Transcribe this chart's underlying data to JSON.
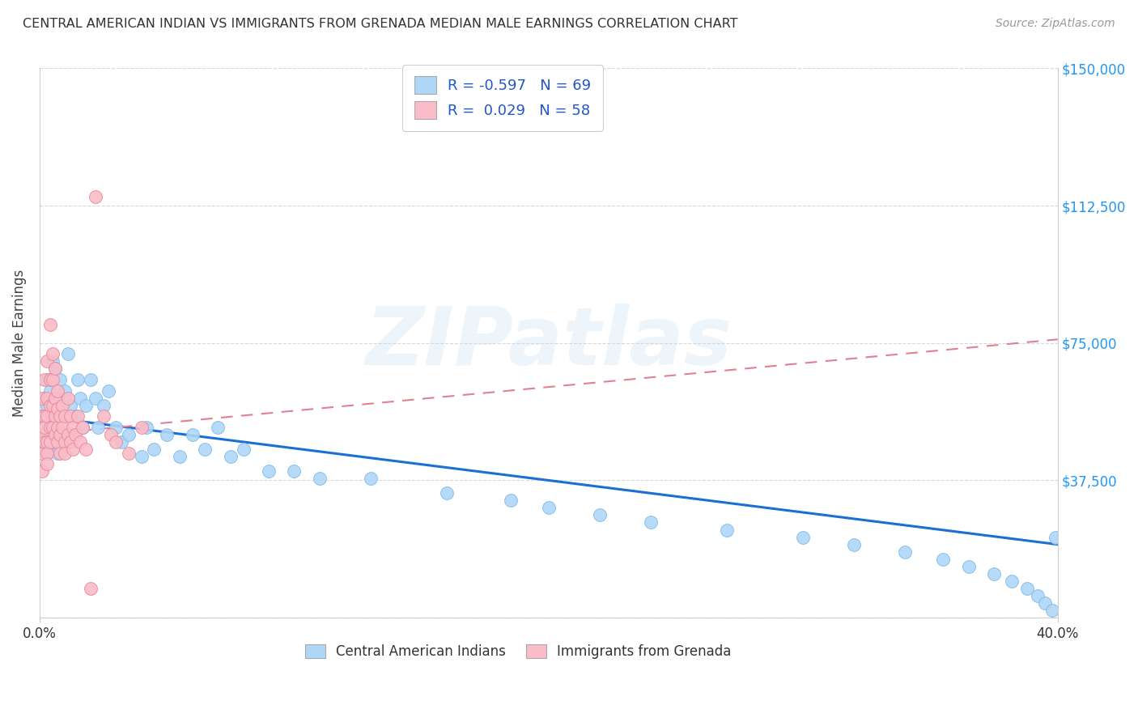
{
  "title": "CENTRAL AMERICAN INDIAN VS IMMIGRANTS FROM GRENADA MEDIAN MALE EARNINGS CORRELATION CHART",
  "source": "Source: ZipAtlas.com",
  "ylabel": "Median Male Earnings",
  "xlim": [
    0.0,
    0.4
  ],
  "ylim": [
    0,
    150000
  ],
  "yticks": [
    0,
    37500,
    75000,
    112500,
    150000
  ],
  "ytick_labels": [
    "",
    "$37,500",
    "$75,000",
    "$112,500",
    "$150,000"
  ],
  "xtick_labels": [
    "0.0%",
    "40.0%"
  ],
  "bg_color": "#ffffff",
  "grid_color": "#d8d8d8",
  "watermark": "ZIPatlas",
  "series1_name": "Central American Indians",
  "series1_color": "#aed6f7",
  "series1_edge": "#80bce8",
  "series1_line_color": "#1a6fd4",
  "series1_R": -0.597,
  "series1_N": 69,
  "series1_line_y0": 55000,
  "series1_line_y1": 20000,
  "series2_name": "Immigrants from Grenada",
  "series2_color": "#f9bcc8",
  "series2_edge": "#e88898",
  "series2_line_color": "#e08090",
  "series2_R": 0.029,
  "series2_N": 58,
  "series2_line_y0": 50000,
  "series2_line_y1": 76000,
  "blue_x": [
    0.001,
    0.001,
    0.002,
    0.002,
    0.003,
    0.003,
    0.003,
    0.004,
    0.004,
    0.005,
    0.005,
    0.005,
    0.006,
    0.006,
    0.007,
    0.007,
    0.008,
    0.008,
    0.009,
    0.01,
    0.01,
    0.011,
    0.012,
    0.013,
    0.014,
    0.015,
    0.016,
    0.017,
    0.018,
    0.02,
    0.022,
    0.023,
    0.025,
    0.027,
    0.03,
    0.032,
    0.035,
    0.04,
    0.042,
    0.045,
    0.05,
    0.055,
    0.06,
    0.065,
    0.07,
    0.075,
    0.08,
    0.09,
    0.1,
    0.11,
    0.13,
    0.16,
    0.185,
    0.2,
    0.22,
    0.24,
    0.27,
    0.3,
    0.32,
    0.34,
    0.355,
    0.365,
    0.375,
    0.382,
    0.388,
    0.392,
    0.395,
    0.398,
    0.399
  ],
  "blue_y": [
    55000,
    48000,
    60000,
    52000,
    65000,
    58000,
    45000,
    62000,
    50000,
    70000,
    55000,
    48000,
    68000,
    52000,
    60000,
    45000,
    65000,
    55000,
    50000,
    62000,
    48000,
    72000,
    58000,
    50000,
    55000,
    65000,
    60000,
    52000,
    58000,
    65000,
    60000,
    52000,
    58000,
    62000,
    52000,
    48000,
    50000,
    44000,
    52000,
    46000,
    50000,
    44000,
    50000,
    46000,
    52000,
    44000,
    46000,
    40000,
    40000,
    38000,
    38000,
    34000,
    32000,
    30000,
    28000,
    26000,
    24000,
    22000,
    20000,
    18000,
    16000,
    14000,
    12000,
    10000,
    8000,
    6000,
    4000,
    2000,
    22000
  ],
  "pink_x": [
    0.001,
    0.001,
    0.001,
    0.001,
    0.001,
    0.002,
    0.002,
    0.002,
    0.002,
    0.003,
    0.003,
    0.003,
    0.003,
    0.003,
    0.003,
    0.004,
    0.004,
    0.004,
    0.004,
    0.004,
    0.005,
    0.005,
    0.005,
    0.005,
    0.006,
    0.006,
    0.006,
    0.006,
    0.007,
    0.007,
    0.007,
    0.007,
    0.008,
    0.008,
    0.008,
    0.009,
    0.009,
    0.01,
    0.01,
    0.01,
    0.011,
    0.011,
    0.012,
    0.012,
    0.013,
    0.013,
    0.014,
    0.015,
    0.016,
    0.017,
    0.018,
    0.02,
    0.022,
    0.025,
    0.028,
    0.03,
    0.035,
    0.04
  ],
  "pink_y": [
    50000,
    55000,
    45000,
    60000,
    40000,
    65000,
    55000,
    48000,
    52000,
    70000,
    60000,
    55000,
    48000,
    45000,
    42000,
    80000,
    65000,
    58000,
    52000,
    48000,
    72000,
    65000,
    58000,
    52000,
    68000,
    60000,
    55000,
    50000,
    62000,
    57000,
    52000,
    48000,
    55000,
    50000,
    45000,
    58000,
    52000,
    48000,
    55000,
    45000,
    60000,
    50000,
    55000,
    48000,
    52000,
    46000,
    50000,
    55000,
    48000,
    52000,
    46000,
    8000,
    115000,
    55000,
    50000,
    48000,
    45000,
    52000
  ]
}
